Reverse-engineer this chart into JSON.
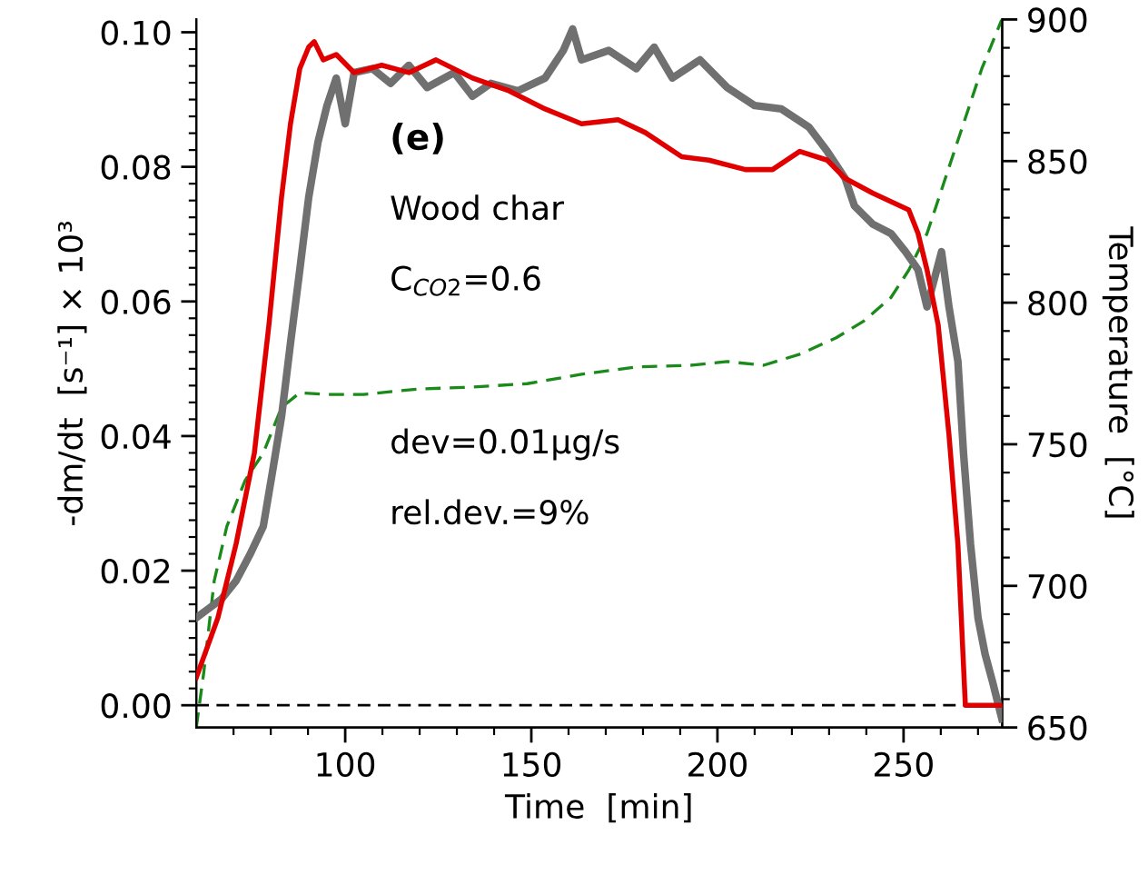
{
  "chart_data": {
    "type": "line",
    "xlabel": "Time  [min]",
    "ylabel": "-dm/dt  [s⁻¹] × 10³",
    "y2label": "Temperature  [°C]",
    "annotations": [
      "(e)",
      "Wood char",
      "C$_{CO2}$=0.6",
      "dev=0.01μg/s",
      "rel.dev.=9%"
    ],
    "xlim": [
      60,
      276.5
    ],
    "ylim": [
      -0.0033,
      0.1019
    ],
    "y2lim": [
      650,
      900
    ],
    "xticks": [
      {
        "value": 70,
        "label": null
      },
      {
        "value": 80,
        "label": null
      },
      {
        "value": 90,
        "label": null
      },
      100,
      {
        "value": 110,
        "label": null
      },
      {
        "value": 120,
        "label": null
      },
      {
        "value": 130,
        "label": null
      },
      {
        "value": 140,
        "label": null
      },
      150,
      {
        "value": 160,
        "label": null
      },
      {
        "value": 170,
        "label": null
      },
      {
        "value": 180,
        "label": null
      },
      {
        "value": 190,
        "label": null
      },
      200,
      {
        "value": 210,
        "label": null
      },
      {
        "value": 220,
        "label": null
      },
      {
        "value": 230,
        "label": null
      },
      {
        "value": 240,
        "label": null
      },
      250,
      {
        "value": 260,
        "label": null
      },
      {
        "value": 270,
        "label": null
      }
    ],
    "yticks": [
      {
        "value": 0,
        "label": "0.00"
      },
      {
        "value": 0.0025,
        "label": null
      },
      {
        "value": 0.005,
        "label": null
      },
      {
        "value": 0.0075,
        "label": null
      },
      {
        "value": 0.01,
        "label": null
      },
      {
        "value": 0.0125,
        "label": null
      },
      {
        "value": 0.015,
        "label": null
      },
      {
        "value": 0.0175,
        "label": null
      },
      {
        "value": 0.02,
        "label": "0.02"
      },
      {
        "value": 0.0225,
        "label": null
      },
      {
        "value": 0.025,
        "label": null
      },
      {
        "value": 0.0275,
        "label": null
      },
      {
        "value": 0.03,
        "label": null
      },
      {
        "value": 0.0325,
        "label": null
      },
      {
        "value": 0.035,
        "label": null
      },
      {
        "value": 0.0375,
        "label": null
      },
      {
        "value": 0.04,
        "label": "0.04"
      },
      {
        "value": 0.0425,
        "label": null
      },
      {
        "value": 0.045,
        "label": null
      },
      {
        "value": 0.0475,
        "label": null
      },
      {
        "value": 0.05,
        "label": null
      },
      {
        "value": 0.0525,
        "label": null
      },
      {
        "value": 0.055,
        "label": null
      },
      {
        "value": 0.0575,
        "label": null
      },
      {
        "value": 0.06,
        "label": "0.06"
      },
      {
        "value": 0.0625,
        "label": null
      },
      {
        "value": 0.065,
        "label": null
      },
      {
        "value": 0.0675,
        "label": null
      },
      {
        "value": 0.07,
        "label": null
      },
      {
        "value": 0.0725,
        "label": null
      },
      {
        "value": 0.075,
        "label": null
      },
      {
        "value": 0.0775,
        "label": null
      },
      {
        "value": 0.08,
        "label": "0.08"
      },
      {
        "value": 0.0825,
        "label": null
      },
      {
        "value": 0.085,
        "label": null
      },
      {
        "value": 0.0875,
        "label": null
      },
      {
        "value": 0.09,
        "label": null
      },
      {
        "value": 0.0925,
        "label": null
      },
      {
        "value": 0.095,
        "label": null
      },
      {
        "value": 0.0975,
        "label": null
      },
      {
        "value": 0.1,
        "label": "0.10"
      }
    ],
    "y2ticks": [
      650,
      {
        "value": 660,
        "label": null
      },
      {
        "value": 670,
        "label": null
      },
      {
        "value": 680,
        "label": null
      },
      {
        "value": 690,
        "label": null
      },
      700,
      {
        "value": 710,
        "label": null
      },
      {
        "value": 720,
        "label": null
      },
      {
        "value": 730,
        "label": null
      },
      {
        "value": 740,
        "label": null
      },
      750,
      {
        "value": 760,
        "label": null
      },
      {
        "value": 770,
        "label": null
      },
      {
        "value": 780,
        "label": null
      },
      {
        "value": 790,
        "label": null
      },
      800,
      {
        "value": 810,
        "label": null
      },
      {
        "value": 820,
        "label": null
      },
      {
        "value": 830,
        "label": null
      },
      {
        "value": 840,
        "label": null
      },
      850,
      {
        "value": 860,
        "label": null
      },
      {
        "value": 870,
        "label": null
      },
      {
        "value": 880,
        "label": null
      },
      {
        "value": 890,
        "label": null
      },
      900
    ],
    "grid": false,
    "ref_lines": [
      {
        "axis": "y",
        "value": 0,
        "color": "#000000",
        "line_style": "dashed"
      }
    ],
    "series": [
      {
        "color": "#707070",
        "x": [
          60,
          63.4,
          66.8,
          70.7,
          74.6,
          78,
          80.5,
          82.9,
          85.3,
          87.8,
          90.2,
          92.7,
          95.1,
          97.6,
          100,
          102.4,
          107.3,
          112.2,
          117.1,
          122,
          129.3,
          134.2,
          139.1,
          146.4,
          153.7,
          158.6,
          161.1,
          163.5,
          170.8,
          178.2,
          183,
          187.9,
          195.3,
          202.6,
          210,
          217.2,
          224.6,
          229.5,
          234.3,
          236.8,
          241.7,
          246.6,
          250.5,
          253.9,
          256.3,
          260.2,
          262.2,
          264.6,
          266.1,
          268,
          270,
          271.9,
          273.9,
          276.4
        ],
        "values": [
          0.013,
          0.0144,
          0.0158,
          0.0185,
          0.0226,
          0.0266,
          0.0348,
          0.0429,
          0.0538,
          0.0647,
          0.0755,
          0.0837,
          0.0891,
          0.0932,
          0.0864,
          0.094,
          0.0946,
          0.0924,
          0.0951,
          0.0918,
          0.094,
          0.0905,
          0.0924,
          0.0913,
          0.0932,
          0.0973,
          0.1005,
          0.0959,
          0.0973,
          0.0946,
          0.0978,
          0.0932,
          0.0959,
          0.0918,
          0.0891,
          0.0886,
          0.0859,
          0.0823,
          0.0783,
          0.0742,
          0.0715,
          0.0701,
          0.0674,
          0.0647,
          0.0592,
          0.0674,
          0.0592,
          0.0511,
          0.0375,
          0.0239,
          0.013,
          0.0076,
          0.0035,
          -0.002
        ],
        "line_style": "solid"
      },
      {
        "color": "#e00000",
        "x": [
          60,
          65.8,
          70.7,
          75.6,
          79.5,
          82.9,
          85.3,
          87.8,
          90.2,
          91.7,
          94.1,
          97.6,
          102.4,
          109.8,
          117.1,
          124.4,
          134.2,
          144,
          153.7,
          163.5,
          173.3,
          180.6,
          190.4,
          197.7,
          207.5,
          214.8,
          222.1,
          229.5,
          234.3,
          241.7,
          251.4,
          253.9,
          256.3,
          259.3,
          262.2,
          264.6,
          266.6,
          275.9
        ],
        "values": [
          0.0041,
          0.013,
          0.024,
          0.0375,
          0.0565,
          0.0755,
          0.0864,
          0.0946,
          0.0978,
          0.0986,
          0.0959,
          0.0967,
          0.094,
          0.0951,
          0.094,
          0.0959,
          0.0932,
          0.0913,
          0.0886,
          0.0864,
          0.087,
          0.0851,
          0.0815,
          0.081,
          0.0796,
          0.0796,
          0.0823,
          0.081,
          0.0783,
          0.0761,
          0.0736,
          0.0701,
          0.0647,
          0.0565,
          0.0402,
          0.0239,
          0.0,
          0.0
        ],
        "line_style": "solid"
      },
      {
        "color": "#1a8a1a",
        "axis": "y2",
        "line_style": "dashed",
        "x": [
          60,
          62,
          64.8,
          68.2,
          73.1,
          78,
          82.9,
          87.8,
          95.1,
          104.9,
          119.5,
          134.2,
          148.9,
          163.5,
          178.2,
          192.8,
          202.6,
          212.4,
          222.1,
          231.9,
          239.2,
          246.6,
          251.4,
          256.3,
          261.2,
          266.1,
          271,
          276.4
        ],
        "values": [
          650,
          669.4,
          701.7,
          721,
          737.2,
          746.9,
          763,
          768.2,
          767.6,
          767.6,
          769.5,
          770.2,
          771.4,
          774.7,
          777.3,
          777.9,
          779.2,
          777.9,
          781.8,
          787.6,
          793.4,
          801.8,
          811.5,
          824.4,
          843.8,
          863.2,
          882.6,
          900
        ]
      }
    ]
  }
}
